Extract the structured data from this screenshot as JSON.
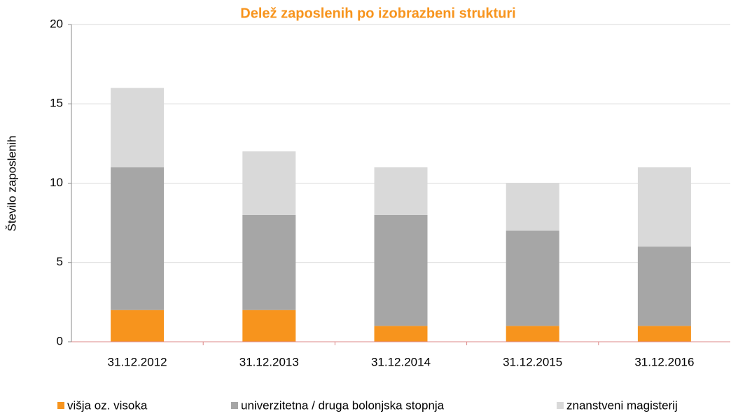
{
  "chart_data": {
    "type": "stacked_bar",
    "title": "Delež zaposlenih po izobrazbeni strukturi",
    "y_label": "Število zaposlenih",
    "categories": [
      "31.12.2012",
      "31.12.2013",
      "31.12.2014",
      "31.12.2015",
      "31.12.2016"
    ],
    "series": [
      {
        "name": "višja oz. visoka",
        "color": "#f7941d",
        "values": [
          2,
          2,
          1,
          1,
          1
        ]
      },
      {
        "name": "univerzitetna / druga bolonjska stopnja",
        "color": "#a6a6a6",
        "values": [
          9,
          6,
          7,
          6,
          5
        ]
      },
      {
        "name": "znanstveni magisterij",
        "color": "#d9d9d9",
        "values": [
          5,
          4,
          3,
          3,
          5
        ]
      }
    ],
    "ylim": [
      0,
      20
    ],
    "yticks": [
      0,
      5,
      10,
      15,
      20
    ],
    "grid": true,
    "legend": "bottom"
  }
}
